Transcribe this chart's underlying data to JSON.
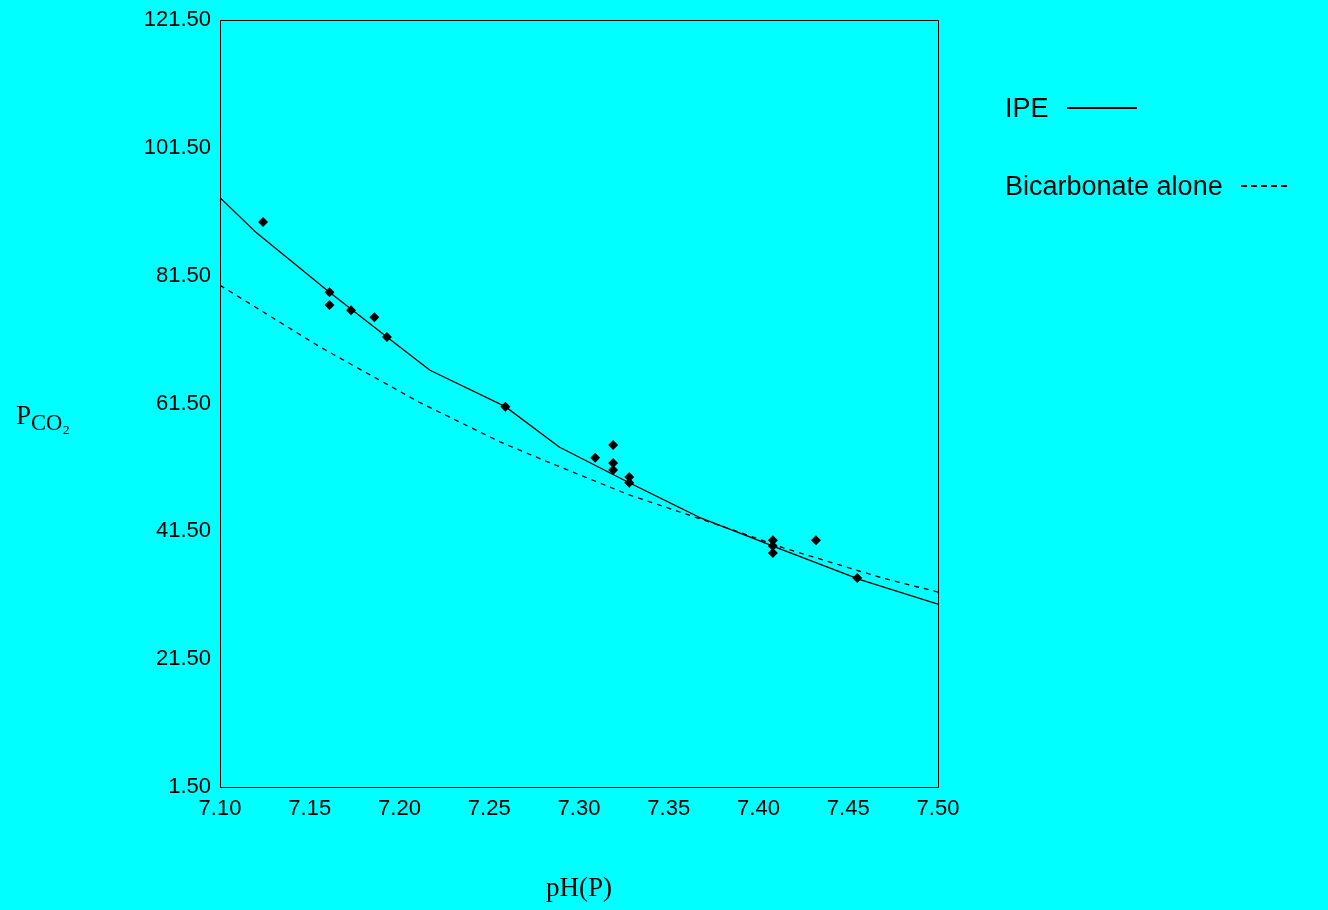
{
  "chart_data": {
    "type": "scatter",
    "xlabel": "pH(P)",
    "ylabel": "P$_{CO₂}$",
    "legend": "right",
    "grid": false,
    "xlim": [
      7.1,
      7.5
    ],
    "xticks": [
      {
        "value": 7.1,
        "label": "7.10"
      },
      {
        "value": 7.15,
        "label": "7.15"
      },
      {
        "value": 7.2,
        "label": "7.20"
      },
      {
        "value": 7.25,
        "label": "7.25"
      },
      {
        "value": 7.3,
        "label": "7.30"
      },
      {
        "value": 7.35,
        "label": "7.35"
      },
      {
        "value": 7.4,
        "label": "7.40"
      },
      {
        "value": 7.45,
        "label": "7.45"
      },
      {
        "value": 7.5,
        "label": "7.50"
      }
    ],
    "ylim": [
      1.5,
      121.5
    ],
    "yticks": [
      {
        "value": 1.5,
        "label": "1.50"
      },
      {
        "value": 21.5,
        "label": "21.50"
      },
      {
        "value": 41.5,
        "label": "41.50"
      },
      {
        "value": 61.5,
        "label": "61.50"
      },
      {
        "value": 81.5,
        "label": "81.50"
      },
      {
        "value": 101.5,
        "label": "101.50"
      },
      {
        "value": 121.5,
        "label": "121.50"
      }
    ],
    "series": [
      {
        "type": "scatter",
        "color": "#000000",
        "marker": "diamond",
        "x": [
          7.124,
          7.161,
          7.161,
          7.173,
          7.186,
          7.193,
          7.259,
          7.309,
          7.319,
          7.319,
          7.319,
          7.328,
          7.328,
          7.408,
          7.408,
          7.408,
          7.432,
          7.455
        ],
        "values": [
          89.9,
          78.9,
          76.9,
          76.1,
          75.0,
          71.9,
          61.0,
          53.0,
          55.0,
          52.2,
          51.1,
          50.0,
          49.1,
          40.1,
          39.2,
          38.1,
          40.1,
          34.2
        ]
      },
      {
        "type": "line",
        "name": "IPE",
        "color": "#000000",
        "marker": "none",
        "line_style": "solid",
        "x": [
          7.1,
          7.12,
          7.161,
          7.193,
          7.217,
          7.259,
          7.289,
          7.328,
          7.367,
          7.408,
          7.457,
          7.5
        ],
        "values": [
          93.7,
          88.3,
          78.9,
          71.9,
          66.7,
          61.0,
          54.7,
          49.1,
          43.7,
          39.2,
          33.9,
          30.1
        ]
      },
      {
        "type": "line",
        "name": "Bicarbonate alone",
        "color": "#000000",
        "marker": "none",
        "line_style": "dashed",
        "x": [
          7.1,
          7.156,
          7.211,
          7.256,
          7.284,
          7.328,
          7.386,
          7.414,
          7.469,
          7.5
        ],
        "values": [
          80.0,
          70.3,
          61.7,
          55.5,
          52.2,
          47.2,
          41.7,
          38.9,
          34.2,
          32.0
        ]
      }
    ]
  }
}
